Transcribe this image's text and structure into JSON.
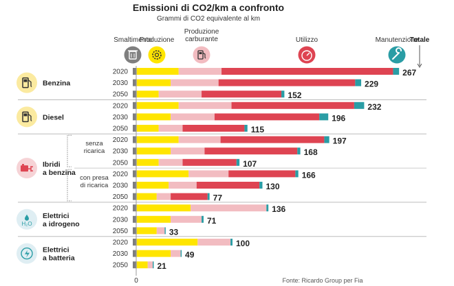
{
  "title": "Emissioni di CO2/km a confronto",
  "subtitle": "Grammi di CO2 equivalente al km",
  "source": "Fonte: Ricardo Group per Fia",
  "axis_zero": "0",
  "components": [
    {
      "key": "smaltimento",
      "label": "Smaltimento",
      "color": "#7f7f7f",
      "icon": "trash-bin-icon",
      "icon_bg": "#7f7f7f"
    },
    {
      "key": "produzione",
      "label": "Produzione",
      "color": "#ffe500",
      "icon": "gear-icon",
      "icon_bg": "#ffe500"
    },
    {
      "key": "carburante",
      "label": "Produzione carburante",
      "label_lines": [
        "Produzione",
        "carburante"
      ],
      "color": "#f2bcc1",
      "icon": "fuel-pump-icon",
      "icon_bg": "#f2bcc1"
    },
    {
      "key": "utilizzo",
      "label": "Utilizzo",
      "color": "#de4452",
      "icon": "speedometer-icon",
      "icon_bg": "#de4452"
    },
    {
      "key": "manutenzione",
      "label": "Manutenzione",
      "color": "#2a9da5",
      "icon": "wrench-icon",
      "icon_bg": "#2a9da5"
    }
  ],
  "total_label": "Totale",
  "categories": [
    {
      "name": "Benzina",
      "name_lines": [
        "Benzina"
      ],
      "icon": "fuel-pump-icon",
      "icon_bg": "#fbeaa0"
    },
    {
      "name": "Diesel",
      "name_lines": [
        "Diesel"
      ],
      "icon": "fuel-pump-icon",
      "icon_bg": "#fbeaa0"
    },
    {
      "name": "Ibridi a benzina",
      "name_lines": [
        "Ibridi",
        "a benzina"
      ],
      "icon": "battery-plug-icon",
      "icon_bg": "#f6d3d6",
      "subgroups": [
        {
          "label_lines": [
            "senza",
            "ricarica"
          ]
        },
        {
          "label_lines": [
            "con presa",
            "di ricarica"
          ]
        }
      ]
    },
    {
      "name": "Elettrici a idrogeno",
      "name_lines": [
        "Elettrici",
        "a idrogeno"
      ],
      "icon": "hydrogen-drop-icon",
      "icon_bg": "#dfeef3"
    },
    {
      "name": "Elettrici a batteria",
      "name_lines": [
        "Elettrici",
        "a batteria"
      ],
      "icon": "electric-plug-icon",
      "icon_bg": "#dfeef3"
    }
  ],
  "chart_data": {
    "type": "bar",
    "orientation": "horizontal",
    "stacked": true,
    "title": "Emissioni di CO2/km a confronto",
    "subtitle": "Grammi di CO2 equivalente al km",
    "xlim": [
      0,
      267
    ],
    "series_order": [
      "Smaltimento",
      "Produzione",
      "Produzione carburante",
      "Utilizzo",
      "Manutenzione"
    ],
    "rows": [
      {
        "group": "Benzina",
        "year": "2020",
        "values": [
          4,
          42,
          43,
          172,
          6
        ],
        "total": 267
      },
      {
        "group": "Benzina",
        "year": "2030",
        "values": [
          4,
          34,
          48,
          137,
          6
        ],
        "total": 229
      },
      {
        "group": "Benzina",
        "year": "2050",
        "values": [
          4,
          22,
          43,
          80,
          3
        ],
        "total": 152
      },
      {
        "group": "Diesel",
        "year": "2020",
        "values": [
          4,
          42,
          53,
          123,
          10
        ],
        "total": 232
      },
      {
        "group": "Diesel",
        "year": "2030",
        "values": [
          4,
          34,
          44,
          105,
          9
        ],
        "total": 196
      },
      {
        "group": "Diesel",
        "year": "2050",
        "values": [
          4,
          22,
          24,
          62,
          3
        ],
        "total": 115
      },
      {
        "group": "Ibridi a benzina",
        "subgroup": "senza ricarica",
        "year": "2020",
        "values": [
          4,
          42,
          42,
          104,
          5
        ],
        "total": 197
      },
      {
        "group": "Ibridi a benzina",
        "subgroup": "senza ricarica",
        "year": "2030",
        "values": [
          4,
          34,
          34,
          93,
          3
        ],
        "total": 168
      },
      {
        "group": "Ibridi a benzina",
        "subgroup": "senza ricarica",
        "year": "2050",
        "values": [
          4,
          22,
          24,
          54,
          3
        ],
        "total": 107
      },
      {
        "group": "Ibridi a benzina",
        "subgroup": "con presa di ricarica",
        "year": "2020",
        "values": [
          4,
          52,
          40,
          67,
          3
        ],
        "total": 166
      },
      {
        "group": "Ibridi a benzina",
        "subgroup": "con presa di ricarica",
        "year": "2030",
        "values": [
          4,
          32,
          28,
          63,
          3
        ],
        "total": 130
      },
      {
        "group": "Ibridi a benzina",
        "subgroup": "con presa di ricarica",
        "year": "2050",
        "values": [
          4,
          20,
          14,
          37,
          2
        ],
        "total": 77
      },
      {
        "group": "Elettrici a idrogeno",
        "year": "2020",
        "values": [
          4,
          54,
          76,
          0,
          2
        ],
        "total": 136
      },
      {
        "group": "Elettrici a idrogeno",
        "year": "2030",
        "values": [
          4,
          34,
          31,
          0,
          2
        ],
        "total": 71
      },
      {
        "group": "Elettrici a idrogeno",
        "year": "2050",
        "values": [
          4,
          20,
          8,
          0,
          1
        ],
        "total": 33
      },
      {
        "group": "Elettrici a batteria",
        "year": "2020",
        "values": [
          4,
          61,
          33,
          0,
          2
        ],
        "total": 100
      },
      {
        "group": "Elettrici a batteria",
        "year": "2030",
        "values": [
          4,
          34,
          10,
          0,
          1
        ],
        "total": 49
      },
      {
        "group": "Elettrici a batteria",
        "year": "2050",
        "values": [
          4,
          11,
          5,
          0,
          1
        ],
        "total": 21
      }
    ]
  }
}
